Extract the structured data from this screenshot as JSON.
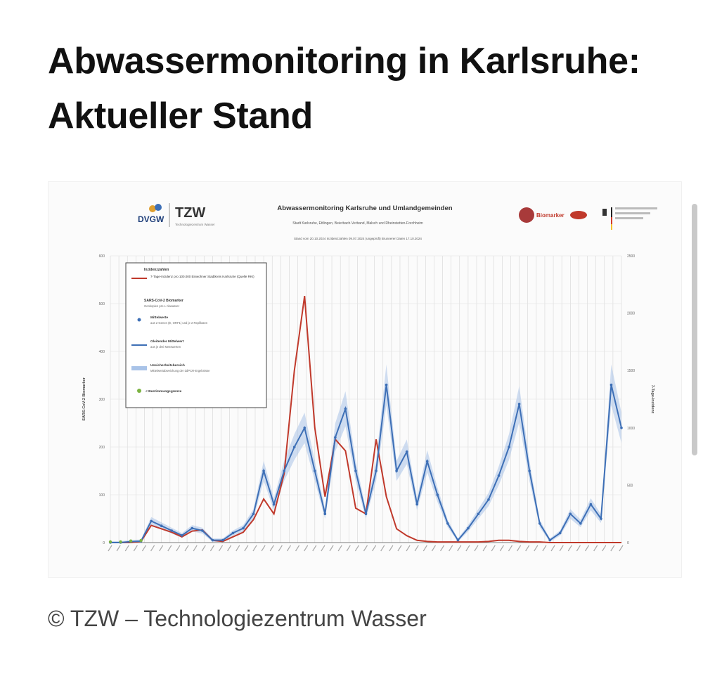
{
  "article": {
    "title": "Abwassermonitoring in Karlsruhe: Aktueller Stand",
    "caption": "© TZW – Technologiezentrum Wasser"
  },
  "figure": {
    "logos": {
      "dvgw": "DVGW",
      "tzw": "TZW",
      "tzw_sub": "Technologiezentrum Wasser",
      "biomarker": "Biomarker"
    },
    "icons": [
      "dvgw-logo-icon",
      "biomarker-logo-icon",
      "federal-eagle-icon"
    ],
    "chart_title": "Abwassermonitoring Karlsruhe und Umlandgemeinden",
    "chart_subtitle": "Stadt Karlsruhe, Ettlingen, Beierbach-Verband, Malsch und Rheinstetten-Forchheim",
    "stand_line": "Stand vom 20.10.2024     Inzidenzzahlen 09.07.2024     (ungeprüft)     Brunnerer Daten 17.10.2024",
    "legend": {
      "section1": "Inzidenzzahlen",
      "incidence": "7-Tage-Inzidenz pro 100.000 Einwohner Stadtkreis Karlsruhe (Quelle RKI)",
      "section2": "SARS-CoV-2 Biomarker",
      "section2_sub": "Genkopien pro L Abwasser",
      "means": "Mittelwerte",
      "means_sub": "aus 2 Genen (E, ORF1) und je 2 Replikaten",
      "rolling": "Gleitender Mittelwert",
      "rolling_sub": "aus je drei Messwerten",
      "uncertainty": "Unsicherheitsbereich",
      "uncertainty_sub": "Mittelwertabweichung der ddPCR-Ergebnisse",
      "lod": "< Bestimmungsgrenze"
    },
    "colors": {
      "incidence": "#c0392b",
      "biomarker": "#3d6fb6",
      "band": "#a9c3e8",
      "lod": "#7cb342"
    }
  },
  "chart_data": {
    "type": "line",
    "title": "Abwassermonitoring Karlsruhe und Umlandgemeinden",
    "ylabel": "SARS-CoV-2 Biomarker",
    "y2label": "7-Tage-Inzidenz",
    "ylim": [
      0,
      600
    ],
    "y2lim": [
      0,
      2500
    ],
    "yticks": [
      0,
      100,
      200,
      300,
      400,
      500,
      600
    ],
    "y2ticks": [
      0,
      500,
      1000,
      1500,
      2000,
      2500
    ],
    "grid": true,
    "legend_position": "top-left",
    "x_index": [
      0,
      2,
      4,
      6,
      8,
      10,
      12,
      14,
      16,
      18,
      20,
      22,
      24,
      26,
      28,
      30,
      32,
      34,
      36,
      38,
      40,
      42,
      44,
      46,
      48,
      50,
      52,
      54,
      56,
      58,
      60,
      62,
      64,
      66,
      68,
      70,
      72,
      74,
      76,
      78,
      80,
      82,
      84,
      86,
      88,
      90,
      92,
      94,
      96,
      98,
      100
    ],
    "series": [
      {
        "name": "Gleitender Mittelwert",
        "axis": "left",
        "values": [
          0,
          0,
          2,
          3,
          45,
          35,
          25,
          15,
          30,
          25,
          5,
          5,
          20,
          30,
          60,
          150,
          80,
          150,
          200,
          240,
          150,
          60,
          220,
          280,
          150,
          60,
          150,
          330,
          150,
          190,
          80,
          170,
          100,
          40,
          5,
          30,
          60,
          90,
          140,
          200,
          290,
          150,
          40,
          5,
          20,
          60,
          40,
          80,
          50,
          330,
          240
        ]
      },
      {
        "name": "7-Tage-Inzidenz pro 100.000 Einwohner Stadtkreis Karlsruhe (Quelle RKI)",
        "axis": "right",
        "values": [
          0,
          0,
          0,
          10,
          150,
          120,
          90,
          50,
          100,
          110,
          20,
          10,
          50,
          90,
          200,
          380,
          250,
          600,
          1500,
          2150,
          1000,
          400,
          900,
          800,
          300,
          250,
          900,
          400,
          120,
          60,
          20,
          10,
          5,
          5,
          5,
          5,
          5,
          10,
          20,
          20,
          10,
          5,
          5,
          0,
          0,
          0,
          0,
          0,
          0,
          0,
          0
        ]
      }
    ]
  }
}
